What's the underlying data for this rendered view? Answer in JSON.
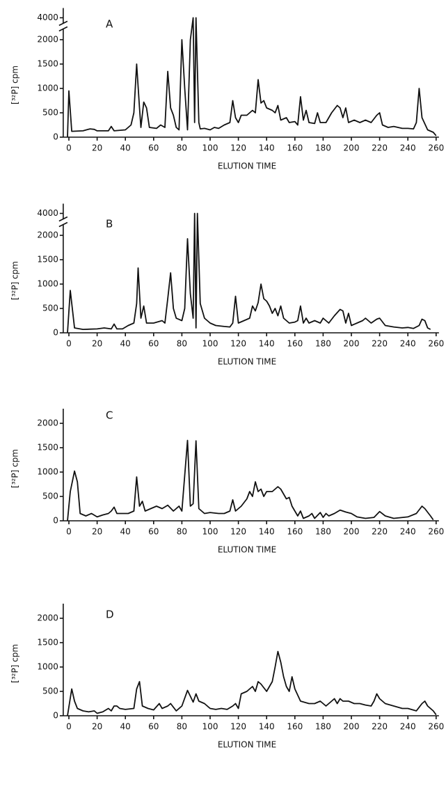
{
  "chart_data": [
    {
      "type": "line",
      "title": "A",
      "xlabel": "ELUTION TIME",
      "ylabel": "[³²P] cpm",
      "color": "#111111",
      "xlim": [
        -4,
        262
      ],
      "xticks": [
        0,
        20,
        40,
        60,
        80,
        100,
        120,
        140,
        160,
        180,
        200,
        220,
        240,
        260
      ],
      "ylim": [
        0,
        4200
      ],
      "yticks": [
        0,
        500,
        1000,
        1500,
        2000,
        4000
      ],
      "ybreak": [
        2250,
        3800
      ],
      "x": [
        -1,
        0,
        2,
        10,
        15,
        18,
        20,
        28,
        30,
        32,
        40,
        44,
        46,
        48,
        50,
        51,
        53,
        55,
        57,
        62,
        65,
        68,
        70,
        72,
        74,
        76,
        78,
        80,
        82,
        84,
        86,
        88,
        89,
        90,
        92,
        93,
        96,
        100,
        103,
        106,
        110,
        114,
        116,
        118,
        120,
        122,
        126,
        130,
        132,
        134,
        136,
        138,
        140,
        144,
        146,
        148,
        150,
        154,
        156,
        160,
        162,
        164,
        166,
        168,
        170,
        174,
        176,
        178,
        182,
        186,
        190,
        192,
        194,
        196,
        198,
        202,
        206,
        210,
        214,
        218,
        220,
        222,
        226,
        230,
        236,
        240,
        244,
        246,
        248,
        250,
        254,
        258,
        260
      ],
      "values": [
        0,
        950,
        120,
        130,
        170,
        160,
        130,
        130,
        220,
        130,
        150,
        250,
        500,
        1500,
        600,
        200,
        720,
        600,
        200,
        180,
        250,
        200,
        1350,
        600,
        450,
        200,
        150,
        2000,
        1000,
        150,
        2000,
        4000,
        300,
        4000,
        300,
        170,
        180,
        150,
        200,
        180,
        250,
        300,
        750,
        400,
        300,
        450,
        450,
        550,
        500,
        1180,
        700,
        750,
        600,
        550,
        500,
        650,
        350,
        400,
        300,
        320,
        250,
        830,
        350,
        550,
        300,
        280,
        500,
        300,
        300,
        500,
        650,
        600,
        400,
        600,
        300,
        350,
        300,
        350,
        300,
        450,
        500,
        250,
        200,
        220,
        180,
        180,
        170,
        300,
        1000,
        400,
        150,
        100,
        30
      ]
    },
    {
      "type": "line",
      "title": "B",
      "xlabel": "ELUTION TIME",
      "ylabel": "[³²P] cpm",
      "color": "#111111",
      "xlim": [
        -4,
        262
      ],
      "xticks": [
        0,
        20,
        40,
        60,
        80,
        100,
        120,
        140,
        160,
        180,
        200,
        220,
        240,
        260
      ],
      "ylim": [
        0,
        4200
      ],
      "yticks": [
        0,
        500,
        1000,
        1500,
        2000,
        4000
      ],
      "ybreak": [
        2250,
        3800
      ],
      "x": [
        -1,
        1,
        4,
        10,
        20,
        25,
        30,
        32,
        34,
        38,
        42,
        46,
        48,
        49,
        51,
        53,
        55,
        60,
        66,
        68,
        70,
        72,
        74,
        76,
        80,
        82,
        84,
        86,
        88,
        89,
        90,
        91,
        93,
        96,
        100,
        104,
        110,
        114,
        116,
        118,
        120,
        124,
        128,
        130,
        132,
        134,
        136,
        138,
        140,
        142,
        144,
        146,
        148,
        150,
        152,
        156,
        160,
        162,
        164,
        166,
        168,
        170,
        174,
        178,
        180,
        184,
        188,
        192,
        194,
        196,
        198,
        200,
        204,
        208,
        210,
        214,
        218,
        220,
        224,
        230,
        236,
        240,
        244,
        248,
        250,
        252,
        254,
        256
      ],
      "values": [
        0,
        870,
        100,
        70,
        80,
        100,
        80,
        180,
        80,
        80,
        150,
        200,
        600,
        1330,
        300,
        550,
        200,
        200,
        250,
        200,
        700,
        1230,
        500,
        300,
        250,
        500,
        1930,
        800,
        300,
        4000,
        100,
        4000,
        600,
        300,
        200,
        150,
        130,
        120,
        200,
        750,
        200,
        250,
        300,
        550,
        450,
        620,
        1000,
        700,
        650,
        550,
        400,
        500,
        350,
        550,
        300,
        200,
        220,
        250,
        550,
        200,
        300,
        200,
        250,
        200,
        300,
        200,
        350,
        480,
        450,
        200,
        400,
        150,
        200,
        250,
        300,
        200,
        280,
        300,
        150,
        120,
        100,
        110,
        90,
        150,
        280,
        250,
        100,
        70
      ]
    },
    {
      "type": "line",
      "title": "C",
      "xlabel": "ELUTION TIME",
      "ylabel": "[³²P] cpm",
      "color": "#111111",
      "xlim": [
        -4,
        262
      ],
      "xticks": [
        0,
        20,
        40,
        60,
        80,
        100,
        120,
        140,
        160,
        180,
        200,
        220,
        240,
        260
      ],
      "ylim": [
        0,
        2300
      ],
      "yticks": [
        0,
        500,
        1000,
        1500,
        2000
      ],
      "x": [
        -1,
        1,
        4,
        6,
        8,
        12,
        16,
        20,
        24,
        28,
        30,
        32,
        34,
        38,
        42,
        46,
        48,
        50,
        52,
        54,
        58,
        62,
        66,
        70,
        74,
        78,
        80,
        84,
        86,
        88,
        90,
        92,
        96,
        100,
        106,
        110,
        114,
        116,
        118,
        122,
        126,
        128,
        130,
        132,
        134,
        136,
        138,
        140,
        144,
        148,
        150,
        154,
        156,
        158,
        160,
        162,
        164,
        166,
        170,
        172,
        174,
        178,
        180,
        182,
        184,
        188,
        192,
        196,
        200,
        204,
        210,
        216,
        220,
        224,
        230,
        240,
        246,
        250,
        252,
        256,
        258
      ],
      "values": [
        0,
        600,
        1020,
        800,
        150,
        100,
        150,
        80,
        120,
        150,
        200,
        280,
        150,
        150,
        150,
        200,
        900,
        300,
        400,
        200,
        250,
        300,
        250,
        320,
        200,
        300,
        200,
        1650,
        300,
        350,
        1640,
        250,
        150,
        170,
        150,
        150,
        200,
        430,
        200,
        300,
        450,
        600,
        500,
        800,
        600,
        650,
        500,
        600,
        600,
        700,
        650,
        450,
        480,
        300,
        200,
        100,
        200,
        50,
        100,
        150,
        50,
        170,
        70,
        150,
        100,
        150,
        220,
        180,
        150,
        80,
        50,
        70,
        190,
        100,
        50,
        80,
        150,
        300,
        250,
        100,
        20
      ]
    },
    {
      "type": "line",
      "title": "D",
      "xlabel": "ELUTION TIME",
      "ylabel": "[³²P] cpm",
      "color": "#111111",
      "xlim": [
        -4,
        262
      ],
      "xticks": [
        0,
        20,
        40,
        60,
        80,
        100,
        120,
        140,
        160,
        180,
        200,
        220,
        240,
        260
      ],
      "ylim": [
        0,
        2300
      ],
      "yticks": [
        0,
        500,
        1000,
        1500,
        2000
      ],
      "x": [
        -1,
        2,
        4,
        6,
        10,
        14,
        18,
        20,
        24,
        28,
        30,
        32,
        34,
        36,
        40,
        46,
        48,
        50,
        52,
        56,
        60,
        64,
        66,
        70,
        72,
        76,
        80,
        84,
        86,
        88,
        90,
        92,
        96,
        100,
        104,
        108,
        112,
        116,
        118,
        120,
        122,
        126,
        128,
        130,
        132,
        134,
        136,
        140,
        144,
        146,
        148,
        150,
        152,
        154,
        156,
        158,
        160,
        164,
        170,
        174,
        178,
        182,
        186,
        188,
        190,
        192,
        194,
        198,
        202,
        206,
        210,
        214,
        216,
        218,
        220,
        224,
        230,
        236,
        240,
        246,
        250,
        252,
        254,
        258,
        260
      ],
      "values": [
        0,
        550,
        300,
        150,
        100,
        80,
        100,
        50,
        80,
        150,
        100,
        200,
        200,
        150,
        130,
        150,
        550,
        700,
        200,
        150,
        120,
        250,
        150,
        200,
        250,
        100,
        200,
        520,
        400,
        280,
        450,
        300,
        250,
        150,
        130,
        150,
        130,
        200,
        250,
        150,
        450,
        500,
        550,
        600,
        500,
        700,
        650,
        500,
        700,
        1000,
        1320,
        1100,
        800,
        600,
        500,
        800,
        550,
        300,
        250,
        250,
        300,
        200,
        300,
        350,
        250,
        350,
        300,
        300,
        250,
        250,
        220,
        200,
        300,
        450,
        350,
        250,
        200,
        150,
        150,
        100,
        250,
        300,
        200,
        100,
        20
      ]
    }
  ]
}
